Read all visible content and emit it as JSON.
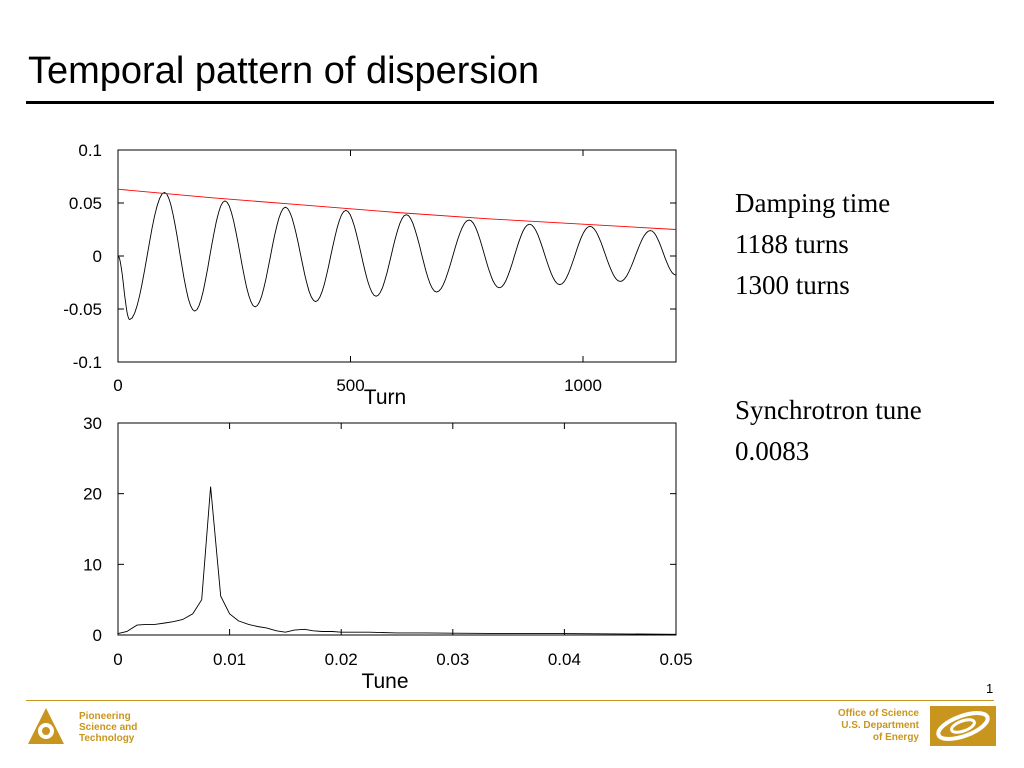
{
  "slide": {
    "title": "Temporal pattern of dispersion",
    "page_number": "1"
  },
  "notes": {
    "damping_heading": "Damping time",
    "damping_value_1": "1188 turns",
    "damping_value_2": "1300 turns",
    "tune_heading": "Synchrotron tune",
    "tune_value": "0.0083"
  },
  "footer": {
    "left_lines": [
      "Pioneering",
      "Science and",
      "Technology"
    ],
    "right_lines": [
      "Office of Science",
      "U.S. Department",
      "of Energy"
    ],
    "accent_color": "#c8961e"
  },
  "chart_data": [
    {
      "type": "line",
      "xlabel": "Turn",
      "ylabel": "",
      "xlim": [
        0,
        1200
      ],
      "ylim": [
        -0.1,
        0.1
      ],
      "x_ticks": [
        0,
        500,
        1000
      ],
      "x_tick_labels": [
        "0",
        "500",
        "1000"
      ],
      "y_ticks": [
        0.1,
        0.05,
        0,
        -0.05,
        -0.1
      ],
      "y_tick_labels": [
        "0.1",
        "0.05",
        "0",
        "-0.05",
        "-0.1"
      ],
      "grid": false,
      "series": [
        {
          "kind": "damped_oscillation",
          "color": "#000000",
          "x": [
            0,
            25,
            100,
            165,
            230,
            295,
            360,
            425,
            490,
            555,
            620,
            685,
            755,
            820,
            885,
            950,
            1015,
            1080,
            1145,
            1200
          ],
          "y": [
            0.0,
            -0.06,
            0.06,
            -0.052,
            0.052,
            -0.048,
            0.046,
            -0.043,
            0.043,
            -0.038,
            0.039,
            -0.034,
            0.034,
            -0.03,
            0.03,
            -0.027,
            0.028,
            -0.024,
            0.024,
            -0.018
          ]
        },
        {
          "kind": "envelope_fit",
          "color": "#ff0000",
          "x": [
            0,
            200,
            400,
            600,
            800,
            1000,
            1200
          ],
          "y": [
            0.063,
            0.055,
            0.048,
            0.041,
            0.035,
            0.03,
            0.025
          ]
        }
      ]
    },
    {
      "type": "line",
      "xlabel": "Tune",
      "ylabel": "",
      "xlim": [
        0,
        0.05
      ],
      "ylim": [
        0,
        30
      ],
      "x_ticks": [
        0,
        0.01,
        0.02,
        0.03,
        0.04,
        0.05
      ],
      "x_tick_labels": [
        "0",
        "0.01",
        "0.02",
        "0.03",
        "0.04",
        "0.05"
      ],
      "y_ticks": [
        30,
        20,
        10,
        0
      ],
      "y_tick_labels": [
        "30",
        "20",
        "10",
        "0"
      ],
      "grid": false,
      "series": [
        {
          "color": "#000000",
          "x": [
            0.0,
            0.0008,
            0.0017,
            0.0025,
            0.0033,
            0.0042,
            0.005,
            0.0058,
            0.0067,
            0.0075,
            0.0083,
            0.0092,
            0.01,
            0.0108,
            0.0117,
            0.0125,
            0.0133,
            0.0142,
            0.015,
            0.0158,
            0.0167,
            0.0175,
            0.0183,
            0.0192,
            0.02,
            0.0225,
            0.025,
            0.0275,
            0.03,
            0.035,
            0.04,
            0.045,
            0.05
          ],
          "y": [
            0.2,
            0.5,
            1.4,
            1.5,
            1.5,
            1.7,
            1.9,
            2.2,
            3.0,
            5.0,
            21.0,
            5.5,
            3.0,
            2.0,
            1.5,
            1.2,
            1.0,
            0.6,
            0.4,
            0.7,
            0.8,
            0.6,
            0.5,
            0.5,
            0.4,
            0.4,
            0.3,
            0.3,
            0.25,
            0.2,
            0.2,
            0.15,
            0.1
          ]
        }
      ]
    }
  ]
}
